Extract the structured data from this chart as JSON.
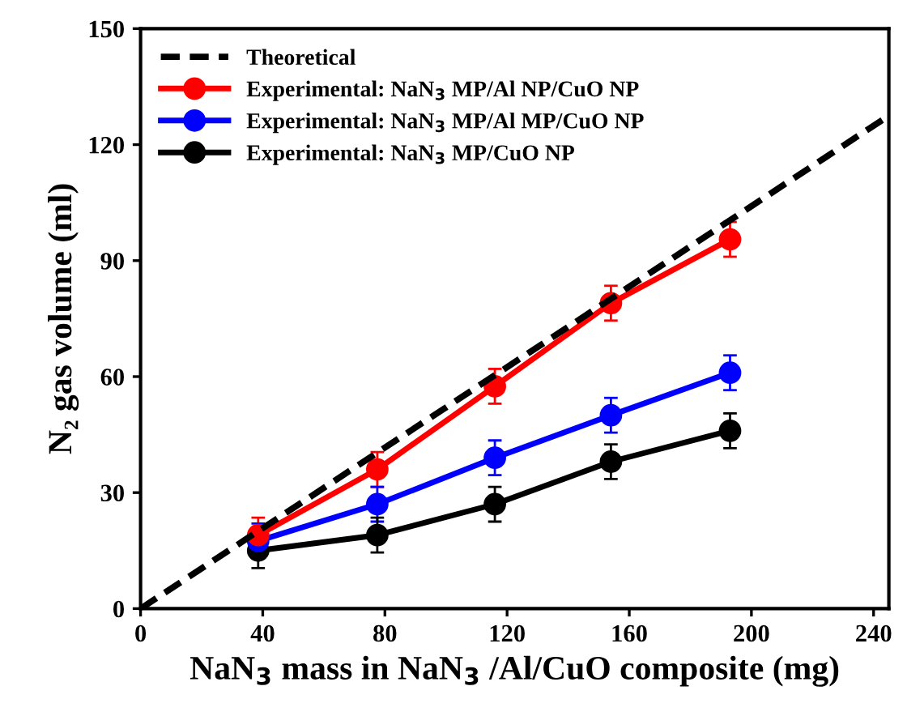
{
  "chart_data": {
    "type": "line",
    "xlabel": "NaN$_{3}$ mass in NaN$_{3}$ /Al/CuO composite (mg)",
    "ylabel": "N₂ gas volume (ml)",
    "xlim": [
      0,
      245
    ],
    "ylim": [
      0,
      150
    ],
    "xticks": [
      0,
      40,
      80,
      120,
      160,
      200,
      240
    ],
    "yticks": [
      0,
      30,
      60,
      90,
      120,
      150
    ],
    "legend": "top left",
    "grid": false,
    "marker": "circle",
    "series": [
      {
        "name": "Theoretical",
        "color": "#000000",
        "line_style": "dashed",
        "marker": "none",
        "x": [
          0,
          245
        ],
        "values": [
          0,
          127.5
        ]
      },
      {
        "name": "Experimental: NaN$_{3}$ MP/Al NP/CuO NP",
        "color": "#ff0000",
        "x": [
          38.5,
          77.5,
          116,
          154,
          193
        ],
        "values": [
          19,
          36,
          57.5,
          79,
          95.5
        ],
        "errors": [
          4.5,
          4.5,
          4.5,
          4.5,
          4.5
        ]
      },
      {
        "name": "Experimental: NaN$_{3}$ MP/Al MP/CuO NP",
        "color": "#0000ff",
        "x": [
          38.5,
          77.5,
          116,
          154,
          193
        ],
        "values": [
          17.5,
          27,
          39,
          50,
          61
        ],
        "errors": [
          4.5,
          4.5,
          4.5,
          4.5,
          4.5
        ]
      },
      {
        "name": "Experimental: NaN$_{3}$ MP/CuO NP",
        "color": "#000000",
        "x": [
          38.5,
          77.5,
          116,
          154,
          193
        ],
        "values": [
          15,
          19,
          27,
          38,
          46
        ],
        "errors": [
          4.5,
          4.5,
          4.5,
          4.5,
          4.5
        ]
      }
    ]
  }
}
